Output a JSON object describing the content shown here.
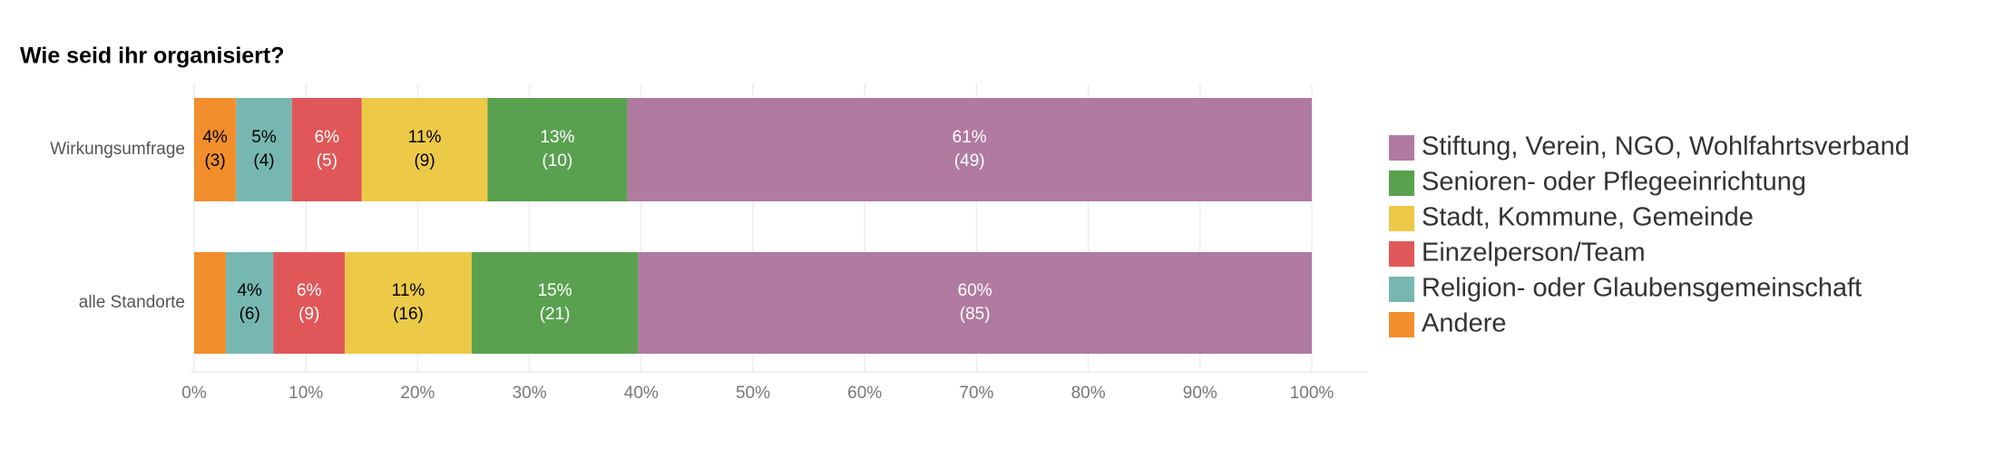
{
  "chart_data": {
    "type": "stacked-bar-horizontal",
    "title": "Wie seid ihr organisiert?",
    "categories": [
      "Wirkungsumfrage",
      "alle Standorte"
    ],
    "series": [
      {
        "name": "Andere",
        "color": "#f28e2b",
        "label_color": "#000000",
        "values": [
          3.75,
          2.84
        ],
        "value_labels": [
          "4%",
          null
        ],
        "count_labels": [
          "(3)",
          null
        ]
      },
      {
        "name": "Religion- oder Glaubensgemeinschaft",
        "color": "#76b7b2",
        "label_color": "#000000",
        "values": [
          5,
          4.26
        ],
        "value_labels": [
          "5%",
          "4%"
        ],
        "count_labels": [
          "(4)",
          "(6)"
        ]
      },
      {
        "name": "Einzelperson/Team",
        "color": "#e15759",
        "label_color": "#ffffff",
        "values": [
          6.25,
          6.38
        ],
        "value_labels": [
          "6%",
          "6%"
        ],
        "count_labels": [
          "(5)",
          "(9)"
        ]
      },
      {
        "name": "Stadt, Kommune, Gemeinde",
        "color": "#edc948",
        "label_color": "#000000",
        "values": [
          11.25,
          11.35
        ],
        "value_labels": [
          "11%",
          "11%"
        ],
        "count_labels": [
          "(9)",
          "(16)"
        ]
      },
      {
        "name": "Senioren- oder Pflegeeinrichtung",
        "color": "#59a14f",
        "label_color": "#ffffff",
        "values": [
          12.5,
          14.89
        ],
        "value_labels": [
          "13%",
          "15%"
        ],
        "count_labels": [
          "(10)",
          "(21)"
        ]
      },
      {
        "name": "Stiftung, Verein, NGO, Wohlfahrtsverband",
        "color": "#b07aa1",
        "label_color": "#ffffff",
        "values": [
          61.25,
          60.28
        ],
        "value_labels": [
          "61%",
          "60%"
        ],
        "count_labels": [
          "(49)",
          "(85)"
        ]
      }
    ],
    "xlim": [
      0,
      100
    ],
    "xticks": [
      {
        "value": 0,
        "label": "0%"
      },
      {
        "value": 10,
        "label": "10%"
      },
      {
        "value": 20,
        "label": "20%"
      },
      {
        "value": 30,
        "label": "30%"
      },
      {
        "value": 40,
        "label": "40%"
      },
      {
        "value": 50,
        "label": "50%"
      },
      {
        "value": 60,
        "label": "60%"
      },
      {
        "value": 70,
        "label": "70%"
      },
      {
        "value": 80,
        "label": "80%"
      },
      {
        "value": 90,
        "label": "90%"
      },
      {
        "value": 100,
        "label": "100%"
      }
    ],
    "grid": true,
    "legend": "right"
  }
}
